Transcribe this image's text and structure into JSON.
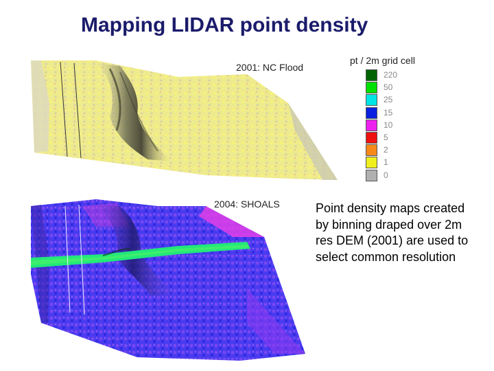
{
  "title": "Mapping LIDAR point density",
  "panels": {
    "top_label": "2001: NC Flood",
    "bottom_label": "2004: SHOALS"
  },
  "legend": {
    "title": "pt / 2m grid cell",
    "items": [
      {
        "value": "220",
        "color": "#006400"
      },
      {
        "value": "50",
        "color": "#00e000"
      },
      {
        "value": "25",
        "color": "#00e5e5"
      },
      {
        "value": "15",
        "color": "#0a1fe0"
      },
      {
        "value": "10",
        "color": "#ee22ee"
      },
      {
        "value": "5",
        "color": "#ee1111"
      },
      {
        "value": "2",
        "color": "#f58a1a"
      },
      {
        "value": "1",
        "color": "#f0f020"
      },
      {
        "value": "0",
        "color": "#b0b0b0"
      }
    ]
  },
  "description": "Point density maps created by binning draped over 2m res DEM (2001) are used to select common resolution"
}
